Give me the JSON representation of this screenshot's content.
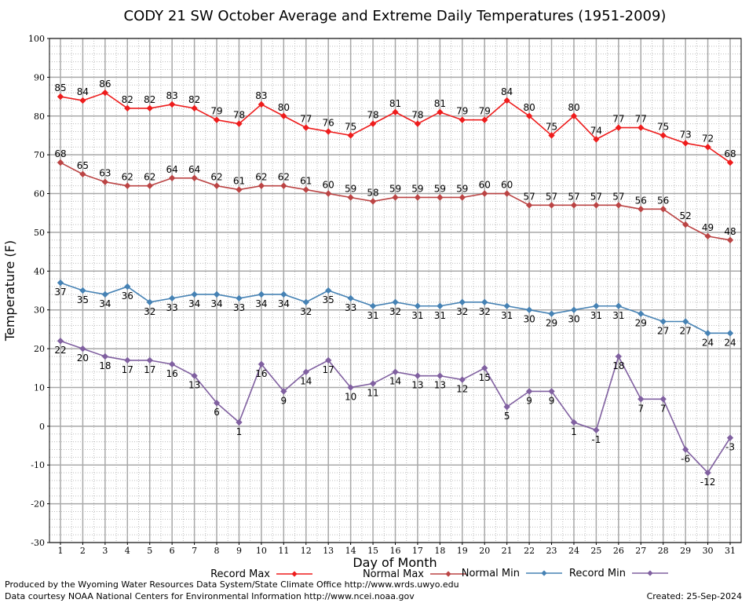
{
  "title": "CODY 21 SW October Average and Extreme Daily Temperatures (1951-2009)",
  "footer": {
    "line1": "Produced by the Wyoming Water Resources Data System/State Climate Office http://www.wrds.uwyo.edu",
    "line2": "Data courtesy NOAA National Centers for Environmental Information http://www.ncei.noaa.gov",
    "created": "Created:  25-Sep-2024"
  },
  "chart_data": {
    "type": "line",
    "title": "CODY 21 SW October Average and Extreme Daily Temperatures (1951-2009)",
    "xlabel": "Day of Month",
    "ylabel": "Temperature (F)",
    "x": [
      1,
      2,
      3,
      4,
      5,
      6,
      7,
      8,
      9,
      10,
      11,
      12,
      13,
      14,
      15,
      16,
      17,
      18,
      19,
      20,
      21,
      22,
      23,
      24,
      25,
      26,
      27,
      28,
      29,
      30,
      31
    ],
    "xlim": [
      1,
      31
    ],
    "ylim": [
      -30,
      100
    ],
    "yticks": [
      -30,
      -20,
      -10,
      0,
      10,
      20,
      30,
      40,
      50,
      60,
      70,
      80,
      90,
      100
    ],
    "grid": true,
    "legend_placement": "bottom",
    "series": [
      {
        "name": "Record Max",
        "color": "#ee1c1c",
        "label_position": "above",
        "values": [
          85,
          84,
          86,
          82,
          82,
          83,
          82,
          79,
          78,
          83,
          80,
          77,
          76,
          75,
          78,
          81,
          78,
          81,
          79,
          79,
          84,
          80,
          75,
          80,
          74,
          77,
          77,
          75,
          73,
          72,
          68
        ]
      },
      {
        "name": "Normal Max",
        "color": "#bb4444",
        "label_position": "above",
        "values": [
          68,
          65,
          63,
          62,
          62,
          64,
          64,
          62,
          61,
          62,
          62,
          61,
          60,
          59,
          58,
          59,
          59,
          59,
          59,
          60,
          60,
          57,
          57,
          57,
          57,
          57,
          56,
          56,
          52,
          49,
          48
        ]
      },
      {
        "name": "Normal Min",
        "color": "#4682b4",
        "label_position": "below",
        "values": [
          37,
          35,
          34,
          36,
          32,
          33,
          34,
          34,
          33,
          34,
          34,
          32,
          35,
          33,
          31,
          32,
          31,
          31,
          32,
          32,
          31,
          30,
          29,
          30,
          31,
          31,
          29,
          27,
          27,
          24,
          24
        ]
      },
      {
        "name": "Record Min",
        "color": "#8060a0",
        "label_position": "below",
        "values": [
          22,
          20,
          18,
          17,
          17,
          16,
          13,
          6,
          1,
          16,
          9,
          14,
          17,
          10,
          11,
          14,
          13,
          13,
          12,
          15,
          5,
          9,
          9,
          1,
          -1,
          18,
          7,
          7,
          -6,
          -12,
          -3
        ]
      }
    ]
  }
}
